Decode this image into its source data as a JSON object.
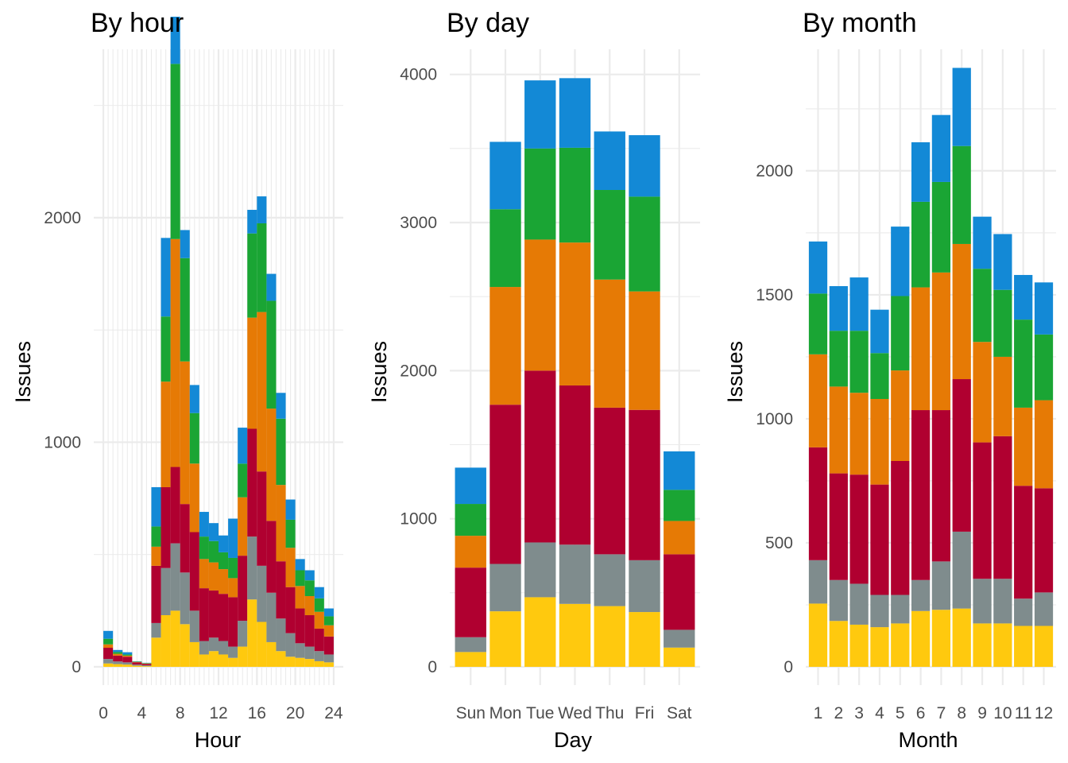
{
  "colors": {
    "c1": "#ffc90e",
    "c2": "#7f8c8d",
    "c3": "#b00030",
    "c4": "#e67a05",
    "c5": "#1aa534",
    "c6": "#1389d6"
  },
  "chart_data": [
    {
      "type": "bar",
      "stacked": true,
      "title": "By hour",
      "xlabel": "Hour",
      "ylabel": "Issues",
      "x_ticks": [
        "0",
        "4",
        "8",
        "12",
        "16",
        "20",
        "24"
      ],
      "y_ticks": [
        "0",
        "1000",
        "2000"
      ],
      "xlim": [
        -1,
        25
      ],
      "ylim": [
        0,
        2750
      ],
      "grid": true,
      "categories": [
        0,
        1,
        2,
        3,
        4,
        5,
        6,
        7,
        8,
        9,
        10,
        11,
        12,
        13,
        14,
        15,
        16,
        17,
        18,
        19,
        20,
        21,
        22,
        23
      ],
      "series": [
        {
          "values": [
            15,
            12,
            10,
            5,
            3,
            130,
            230,
            250,
            190,
            110,
            55,
            70,
            55,
            40,
            90,
            300,
            200,
            110,
            70,
            45,
            40,
            35,
            25,
            20
          ]
        },
        {
          "values": [
            20,
            12,
            10,
            5,
            4,
            65,
            210,
            300,
            230,
            140,
            60,
            60,
            60,
            50,
            115,
            280,
            250,
            220,
            145,
            105,
            65,
            55,
            45,
            35
          ]
        },
        {
          "values": [
            50,
            26,
            25,
            10,
            6,
            255,
            360,
            340,
            305,
            350,
            235,
            210,
            210,
            220,
            290,
            480,
            420,
            320,
            255,
            205,
            155,
            140,
            100,
            80
          ]
        },
        {
          "values": [
            15,
            8,
            5,
            2,
            2,
            85,
            470,
            1015,
            635,
            305,
            130,
            125,
            110,
            85,
            260,
            495,
            710,
            500,
            340,
            175,
            100,
            85,
            75,
            50
          ]
        },
        {
          "values": [
            25,
            8,
            5,
            2,
            2,
            90,
            290,
            780,
            460,
            225,
            100,
            95,
            75,
            90,
            150,
            375,
            395,
            480,
            295,
            125,
            70,
            70,
            60,
            40
          ]
        },
        {
          "values": [
            35,
            9,
            10,
            1,
            1,
            175,
            350,
            210,
            125,
            125,
            110,
            80,
            75,
            175,
            160,
            105,
            120,
            120,
            115,
            90,
            50,
            45,
            50,
            35
          ]
        }
      ]
    },
    {
      "type": "bar",
      "stacked": true,
      "title": "By day",
      "xlabel": "Day",
      "ylabel": "Issues",
      "categories": [
        "Sun",
        "Mon",
        "Tue",
        "Wed",
        "Thu",
        "Fri",
        "Sat"
      ],
      "y_ticks": [
        "0",
        "1000",
        "2000",
        "3000",
        "4000"
      ],
      "ylim": [
        0,
        4170
      ],
      "grid": true,
      "series": [
        {
          "values": [
            100,
            375,
            470,
            425,
            410,
            370,
            130
          ]
        },
        {
          "values": [
            100,
            320,
            370,
            400,
            350,
            350,
            120
          ]
        },
        {
          "values": [
            470,
            1075,
            1160,
            1075,
            990,
            1015,
            510
          ]
        },
        {
          "values": [
            215,
            795,
            885,
            965,
            865,
            800,
            225
          ]
        },
        {
          "values": [
            215,
            525,
            615,
            640,
            605,
            640,
            210
          ]
        },
        {
          "values": [
            245,
            455,
            460,
            470,
            395,
            415,
            260
          ]
        }
      ]
    },
    {
      "type": "bar",
      "stacked": true,
      "title": "By month",
      "xlabel": "Month",
      "ylabel": "Issues",
      "categories": [
        "1",
        "2",
        "3",
        "4",
        "5",
        "6",
        "7",
        "8",
        "9",
        "10",
        "11",
        "12"
      ],
      "y_ticks": [
        "0",
        "500",
        "1000",
        "1500",
        "2000"
      ],
      "ylim": [
        0,
        2490
      ],
      "grid": true,
      "series": [
        {
          "values": [
            255,
            185,
            170,
            160,
            175,
            225,
            230,
            235,
            175,
            175,
            165,
            165
          ]
        },
        {
          "values": [
            175,
            165,
            165,
            130,
            115,
            125,
            195,
            310,
            180,
            180,
            110,
            135
          ]
        },
        {
          "values": [
            455,
            430,
            440,
            445,
            540,
            685,
            610,
            615,
            550,
            575,
            455,
            420
          ]
        },
        {
          "values": [
            375,
            350,
            330,
            345,
            365,
            495,
            555,
            545,
            405,
            320,
            315,
            355
          ]
        },
        {
          "values": [
            245,
            225,
            250,
            185,
            300,
            345,
            365,
            395,
            295,
            270,
            355,
            265
          ]
        },
        {
          "values": [
            210,
            180,
            215,
            175,
            280,
            240,
            270,
            315,
            210,
            225,
            180,
            210
          ]
        }
      ]
    }
  ]
}
